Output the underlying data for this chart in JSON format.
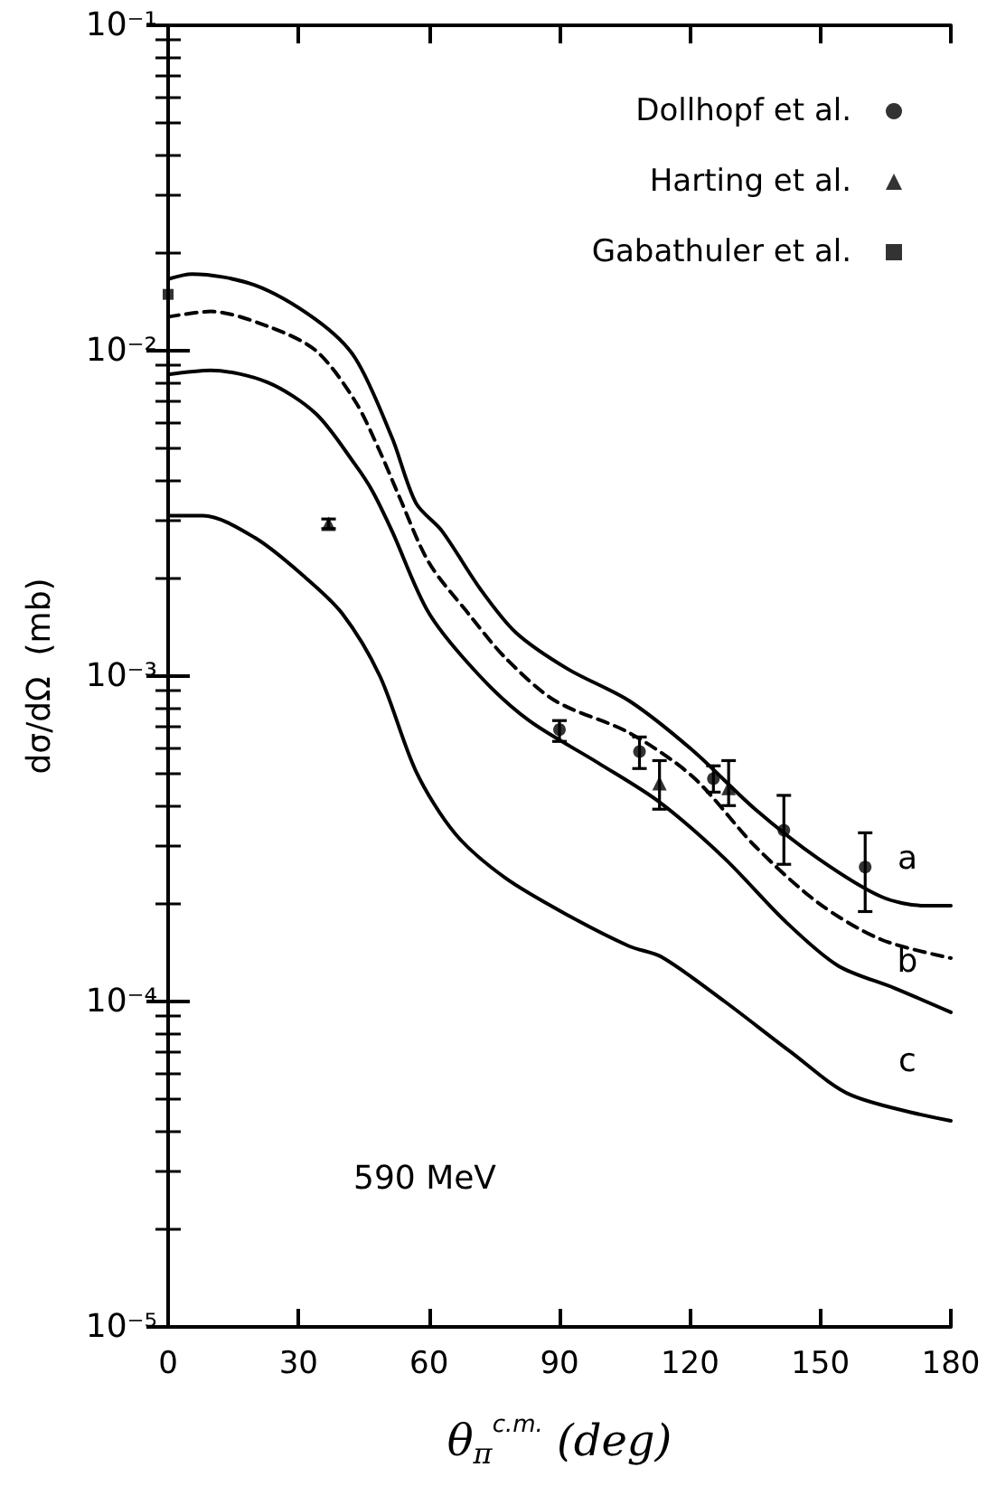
{
  "chart_data": {
    "type": "line",
    "xlabel": "θ$_{π}$$^{c.m.}$ (deg)",
    "ylabel": "dσ/dΩ  (mb)",
    "xlim": [
      0,
      180
    ],
    "xticks": [
      0,
      30,
      60,
      90,
      120,
      150,
      180
    ],
    "ylim": [
      1e-05,
      0.1
    ],
    "yticks": [
      {
        "value": 1e-05,
        "label": "10⁻⁵"
      },
      {
        "value": 0.0001,
        "label": "10⁻⁴"
      },
      {
        "value": 0.001,
        "label": "10⁻³"
      },
      {
        "value": 0.01,
        "label": "10⁻²"
      },
      {
        "value": 0.1,
        "label": "10⁻¹"
      }
    ],
    "log": "y",
    "grid": false,
    "legend": "top right",
    "series": [
      {
        "type": "scatter",
        "name": "Dollhopf et al.",
        "color": "#000000",
        "marker": "circle",
        "x": [
          90,
          108.4,
          125.4,
          141.6,
          160.3
        ],
        "values": [
          0.000685,
          0.000586,
          0.000484,
          0.000336,
          0.000259
        ],
        "errors": [
          [
            0.00063,
            0.00073
          ],
          [
            0.00052,
            0.00065
          ],
          [
            0.00044,
            0.00053
          ],
          [
            0.000264,
            0.00043
          ],
          [
            0.000189,
            0.00033
          ]
        ]
      },
      {
        "type": "scatter",
        "name": "Harting et al.",
        "color": "#000000",
        "marker": "triangle",
        "x": [
          36.9,
          113,
          128.9
        ],
        "values": [
          0.00294,
          0.000469,
          0.000453
        ],
        "errors": [
          [
            0.00284,
            0.00304
          ],
          [
            0.00039,
            0.00055
          ],
          [
            0.0004,
            0.00055
          ]
        ]
      },
      {
        "type": "scatter",
        "name": "Gabathuler et al.",
        "color": "#000000",
        "marker": "square",
        "x": [
          0
        ],
        "values": [
          0.0149
        ]
      },
      {
        "type": "line",
        "color": "#000000",
        "line_style": "solid",
        "marker": "none",
        "x": [
          0,
          5.5,
          19.9,
          34,
          43,
          51.5,
          57,
          63,
          71.7,
          80,
          92,
          106,
          120.7,
          135,
          149.5,
          164,
          174,
          180
        ],
        "values": [
          0.0166,
          0.0172,
          0.0159,
          0.01245,
          0.0095,
          0.0054,
          0.0034,
          0.00279,
          0.00186,
          0.00136,
          0.00105,
          0.00084,
          0.00059,
          0.00039,
          0.000275,
          0.00021,
          0.000197,
          0.000197
        ]
      },
      {
        "type": "line",
        "color": "#000000",
        "line_style": "dashed",
        "marker": "none",
        "x": [
          0,
          9.8,
          22.8,
          34,
          43,
          48.7,
          53,
          60,
          69,
          77.5,
          89,
          106,
          120.7,
          135,
          149.5,
          164,
          180
        ],
        "values": [
          0.0127,
          0.0132,
          0.0119,
          0.01,
          0.007,
          0.0049,
          0.0036,
          0.00223,
          0.00156,
          0.00114,
          0.00084,
          0.00067,
          0.00049,
          0.0003,
          0.000201,
          0.000155,
          0.000136
        ]
      },
      {
        "type": "line",
        "color": "#000000",
        "line_style": "solid",
        "marker": "none",
        "x": [
          0,
          9.8,
          22.8,
          34,
          43,
          47,
          51.5,
          60,
          71.7,
          83,
          99,
          113,
          128,
          142,
          154,
          167,
          180
        ],
        "values": [
          0.00845,
          0.0087,
          0.008,
          0.0064,
          0.00447,
          0.0037,
          0.00279,
          0.00156,
          0.001,
          0.00073,
          0.00054,
          0.00041,
          0.000275,
          0.000176,
          0.000129,
          0.00011,
          9.27e-05
        ]
      },
      {
        "type": "line",
        "color": "#000000",
        "line_style": "solid",
        "marker": "none",
        "x": [
          0,
          8,
          20,
          31,
          40,
          48.7,
          57,
          66,
          77.5,
          92,
          106,
          113.5,
          128,
          143,
          157,
          180
        ],
        "values": [
          0.00311,
          0.00311,
          0.00266,
          0.00204,
          0.00156,
          0.001,
          0.00051,
          0.000328,
          0.00024,
          0.000184,
          0.000148,
          0.000137,
          0.0001,
          7.03e-05,
          5.16e-05,
          4.3e-05
        ]
      }
    ],
    "annotations": [
      "a",
      "b",
      "c",
      "590 MeV"
    ]
  }
}
